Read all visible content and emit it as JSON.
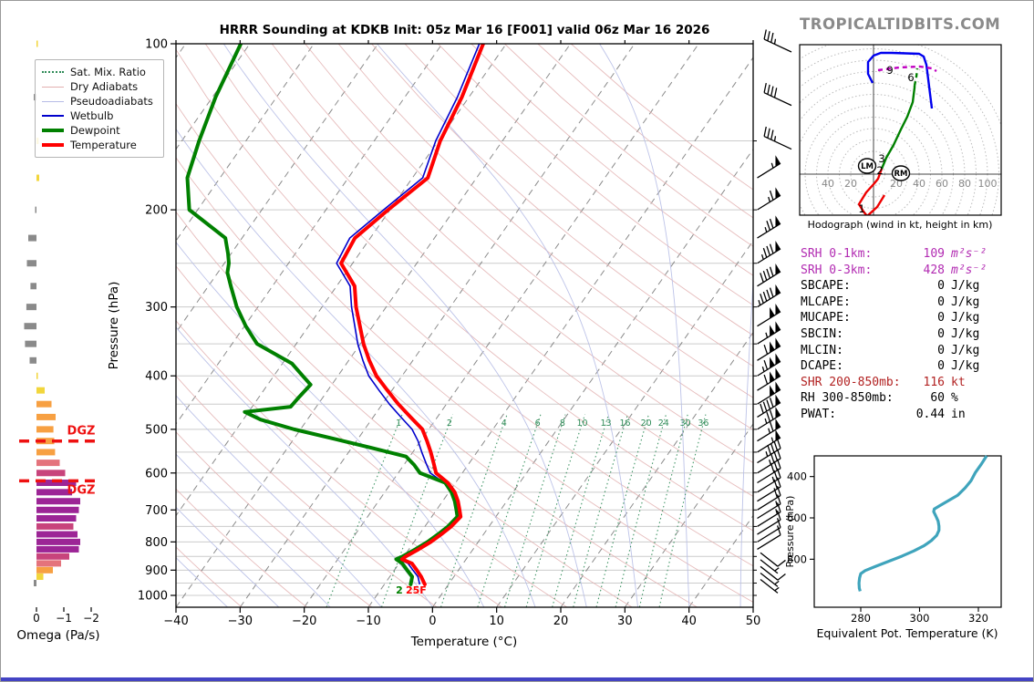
{
  "title": "HRRR Sounding at KDKB Init: 05z Mar 16 [F001] valid 06z Mar 16 2026",
  "watermark": "TROPICALTIDBITS.COM",
  "colors": {
    "temperature": "#ff0000",
    "dewpoint": "#008000",
    "wetbulb": "#0000cc",
    "dry_adiabat": "#e2b0b0",
    "pseudoadiabat": "#b6bce6",
    "mix_ratio": "#2e8b57",
    "isotherm": "#777777",
    "grid": "#cccccc",
    "dgz": "#ee1111",
    "hodo_ring": "#bbbbbb",
    "hodo_label": "#888888",
    "hodo_low": "#ee0000",
    "hodo_mid": "#008000",
    "hodo_high": "#0000ee",
    "hodo_top": "#c000c0",
    "thetae_curve": "#3fa4bc",
    "watermark": "#8a8a8a",
    "srh_text": "#b22bb2",
    "shear_text": "#b22222"
  },
  "skewt": {
    "xlabel": "Temperature (°C)",
    "ylabel": "Pressure (hPa)",
    "x_ticks": [
      -40,
      -30,
      -20,
      -10,
      0,
      10,
      20,
      30,
      40,
      50
    ],
    "p_labels": [
      100,
      200,
      300,
      400,
      500,
      600,
      700,
      800,
      900,
      1000
    ],
    "p_grid_min": 150,
    "p_grid_max": 1000,
    "p_grid_step": 50,
    "surface_dewpoint_label": "2",
    "surface_temp_label": "25F",
    "legend": [
      {
        "label": "Sat. Mix. Ratio",
        "key": "mixratio"
      },
      {
        "label": "Dry Adiabats",
        "key": "dry"
      },
      {
        "label": "Pseudoadiabats",
        "key": "pseudo"
      },
      {
        "label": "Wetbulb",
        "key": "wetbulb"
      },
      {
        "label": "Dewpoint",
        "key": "dewpoint"
      },
      {
        "label": "Temperature",
        "key": "temperature"
      }
    ]
  },
  "chart_data": {
    "type": "skewt-sounding",
    "temperature_C_by_hPa": [
      [
        100,
        -53.6
      ],
      [
        125,
        -51.1
      ],
      [
        150,
        -49.7
      ],
      [
        175,
        -47.6
      ],
      [
        200,
        -50.3
      ],
      [
        225,
        -52.4
      ],
      [
        250,
        -51.8
      ],
      [
        275,
        -47.2
      ],
      [
        300,
        -44.7
      ],
      [
        325,
        -42
      ],
      [
        350,
        -39.5
      ],
      [
        375,
        -36.8
      ],
      [
        400,
        -34
      ],
      [
        425,
        -30.7
      ],
      [
        450,
        -27.5
      ],
      [
        475,
        -24.2
      ],
      [
        500,
        -21
      ],
      [
        525,
        -19
      ],
      [
        550,
        -17.2
      ],
      [
        575,
        -15.6
      ],
      [
        600,
        -14.1
      ],
      [
        625,
        -11.2
      ],
      [
        650,
        -9.1
      ],
      [
        675,
        -7.6
      ],
      [
        700,
        -6.4
      ],
      [
        720,
        -5.5
      ],
      [
        750,
        -5.9
      ],
      [
        775,
        -6.6
      ],
      [
        800,
        -7.4
      ],
      [
        825,
        -8.5
      ],
      [
        850,
        -9.7
      ],
      [
        860,
        -10
      ],
      [
        875,
        -8
      ],
      [
        900,
        -6.5
      ],
      [
        925,
        -5.1
      ],
      [
        955,
        -3.7
      ]
    ],
    "dewpoint_C_by_hPa": [
      [
        100,
        -91.4
      ],
      [
        125,
        -89.5
      ],
      [
        150,
        -87.3
      ],
      [
        175,
        -85.1
      ],
      [
        200,
        -81.3
      ],
      [
        225,
        -72.6
      ],
      [
        240,
        -70.5
      ],
      [
        250,
        -69.3
      ],
      [
        260,
        -68.5
      ],
      [
        275,
        -66.5
      ],
      [
        300,
        -63.3
      ],
      [
        325,
        -59.8
      ],
      [
        350,
        -56.1
      ],
      [
        380,
        -48.5
      ],
      [
        400,
        -45.5
      ],
      [
        415,
        -43.3
      ],
      [
        440,
        -43.8
      ],
      [
        455,
        -44
      ],
      [
        465,
        -50.6
      ],
      [
        480,
        -47.3
      ],
      [
        500,
        -41
      ],
      [
        520,
        -33.8
      ],
      [
        540,
        -27
      ],
      [
        560,
        -20.6
      ],
      [
        580,
        -18.4
      ],
      [
        600,
        -16.6
      ],
      [
        625,
        -11.6
      ],
      [
        650,
        -9.6
      ],
      [
        675,
        -8.1
      ],
      [
        700,
        -6.9
      ],
      [
        720,
        -6
      ],
      [
        750,
        -6.4
      ],
      [
        775,
        -7.1
      ],
      [
        800,
        -7.9
      ],
      [
        825,
        -9
      ],
      [
        850,
        -10.2
      ],
      [
        860,
        -10.9
      ],
      [
        875,
        -9.5
      ],
      [
        900,
        -8
      ],
      [
        925,
        -6.5
      ],
      [
        955,
        -5.9
      ]
    ],
    "wetbulb_C_by_hPa": [
      [
        100,
        -54.2
      ],
      [
        125,
        -51.8
      ],
      [
        150,
        -50.4
      ],
      [
        175,
        -48.4
      ],
      [
        200,
        -51
      ],
      [
        225,
        -53.2
      ],
      [
        250,
        -52.5
      ],
      [
        275,
        -47.9
      ],
      [
        300,
        -45.4
      ],
      [
        325,
        -42.8
      ],
      [
        350,
        -40.4
      ],
      [
        375,
        -37.8
      ],
      [
        400,
        -35.2
      ],
      [
        425,
        -32
      ],
      [
        450,
        -28.9
      ],
      [
        475,
        -25.7
      ],
      [
        500,
        -22.6
      ],
      [
        525,
        -20.4
      ],
      [
        550,
        -18.6
      ],
      [
        575,
        -16.8
      ],
      [
        600,
        -15
      ],
      [
        625,
        -11.8
      ],
      [
        650,
        -9.5
      ],
      [
        675,
        -7.9
      ],
      [
        700,
        -6.6
      ],
      [
        720,
        -5.7
      ],
      [
        750,
        -6.1
      ],
      [
        775,
        -6.9
      ],
      [
        800,
        -7.7
      ],
      [
        825,
        -8.8
      ],
      [
        850,
        -10
      ],
      [
        860,
        -10.4
      ],
      [
        875,
        -8.6
      ],
      [
        900,
        -7.1
      ],
      [
        925,
        -5.6
      ],
      [
        955,
        -4.5
      ]
    ],
    "mixing_ratio_lines_gkg": [
      1,
      2,
      4,
      6,
      8,
      10,
      13,
      16,
      20,
      24,
      30,
      36
    ],
    "isotherms_C": {
      "min": -110,
      "max": 50,
      "step": 10
    },
    "dry_adiabats_thetaK": {
      "min": 230,
      "max": 450,
      "step": 10
    },
    "pseudoadiabats_thetawC": {
      "min": -40,
      "max": 48,
      "step": 8
    },
    "wind_barbs_kt_by_hPa": [
      [
        100,
        35,
        "top"
      ],
      [
        125,
        40,
        "top"
      ],
      [
        150,
        35,
        "top"
      ],
      [
        175,
        55,
        "ne"
      ],
      [
        200,
        65,
        "ne"
      ],
      [
        225,
        75,
        "ne"
      ],
      [
        250,
        85,
        "ne"
      ],
      [
        275,
        90,
        "ne"
      ],
      [
        300,
        95,
        "ne"
      ],
      [
        325,
        100,
        "ne"
      ],
      [
        350,
        105,
        "ne"
      ],
      [
        375,
        110,
        "ne"
      ],
      [
        400,
        115,
        "ne"
      ],
      [
        425,
        110,
        "ne"
      ],
      [
        450,
        100,
        "ne"
      ],
      [
        475,
        90,
        "ne"
      ],
      [
        500,
        75,
        "ne"
      ],
      [
        525,
        65,
        "ne"
      ],
      [
        550,
        55,
        "ne"
      ],
      [
        575,
        45,
        "ne"
      ],
      [
        600,
        35,
        "ne"
      ],
      [
        625,
        30,
        "ne"
      ],
      [
        650,
        25,
        "ne"
      ],
      [
        675,
        20,
        "ne"
      ],
      [
        700,
        20,
        "ne"
      ],
      [
        725,
        15,
        "ne"
      ],
      [
        750,
        15,
        "ne"
      ],
      [
        775,
        10,
        "ne"
      ],
      [
        800,
        10,
        "ne"
      ],
      [
        825,
        10,
        "ne"
      ],
      [
        850,
        10,
        "low"
      ],
      [
        875,
        5,
        "low"
      ],
      [
        900,
        10,
        "low"
      ],
      [
        925,
        5,
        "low"
      ],
      [
        950,
        5,
        "low"
      ]
    ],
    "omega": {
      "xlabel": "Omega (Pa/s)",
      "x_ticks": [
        0,
        -1,
        -2
      ],
      "dgz_label": "DGZ",
      "dgz_levels_hPa": [
        525,
        620
      ],
      "bars_Pas_by_hPa": [
        [
          100,
          -0.05,
          "yellow"
        ],
        [
          125,
          0.1,
          "gray"
        ],
        [
          150,
          -0.08,
          "yellow"
        ],
        [
          175,
          -0.1,
          "yellow"
        ],
        [
          200,
          0.05,
          "gray"
        ],
        [
          225,
          0.3,
          "gray"
        ],
        [
          250,
          0.35,
          "gray"
        ],
        [
          275,
          0.22,
          "gray"
        ],
        [
          300,
          0.37,
          "gray"
        ],
        [
          325,
          0.45,
          "gray"
        ],
        [
          350,
          0.42,
          "gray"
        ],
        [
          375,
          0.25,
          "gray"
        ],
        [
          400,
          -0.05,
          "yellow"
        ],
        [
          425,
          -0.3,
          "yellow"
        ],
        [
          450,
          -0.55,
          "orange"
        ],
        [
          475,
          -0.7,
          "orange"
        ],
        [
          500,
          -0.62,
          "orange"
        ],
        [
          525,
          -0.65,
          "orange"
        ],
        [
          550,
          -0.68,
          "orange"
        ],
        [
          575,
          -0.85,
          "salmon"
        ],
        [
          600,
          -1.05,
          "pink"
        ],
        [
          625,
          -1.45,
          "purple"
        ],
        [
          650,
          -1.3,
          "purple"
        ],
        [
          675,
          -1.6,
          "purple"
        ],
        [
          700,
          -1.55,
          "purple"
        ],
        [
          725,
          -1.45,
          "purple"
        ],
        [
          750,
          -1.35,
          "pink"
        ],
        [
          775,
          -1.5,
          "purple"
        ],
        [
          800,
          -1.6,
          "purple"
        ],
        [
          825,
          -1.55,
          "purple"
        ],
        [
          850,
          -1.2,
          "pink"
        ],
        [
          875,
          -0.9,
          "salmon"
        ],
        [
          900,
          -0.6,
          "orange"
        ],
        [
          925,
          -0.25,
          "yellow"
        ],
        [
          950,
          0.1,
          "gray"
        ]
      ],
      "palette": {
        "gray": "#8a8a8a",
        "yellow": "#f2d63c",
        "orange": "#f7a042",
        "salmon": "#e4737c",
        "pink": "#c8447c",
        "purple": "#9c2596"
      }
    },
    "hodograph": {
      "caption": "Hodograph (wind in kt, height in km)",
      "ring_step_kt": 10,
      "ring_labels_left_kt": [
        40,
        20
      ],
      "ring_labels_right_kt": [
        20,
        40,
        60,
        80,
        100
      ],
      "segments": [
        {
          "name": "0-1km",
          "color_key": "hodo_low",
          "dash": false,
          "uv_kt": [
            [
              9.6,
              -18.4
            ],
            [
              3.2,
              -28.8
            ],
            [
              -5.6,
              -36.8
            ],
            [
              -8.8,
              -32.8
            ],
            [
              -12.8,
              -26.4
            ],
            [
              -6.4,
              -16
            ],
            [
              0.8,
              -8
            ],
            [
              4,
              -4
            ],
            [
              7.2,
              4.8
            ]
          ]
        },
        {
          "name": "1-6km",
          "color_key": "hodo_mid",
          "dash": false,
          "uv_kt": [
            [
              7.2,
              4.8
            ],
            [
              11.2,
              14.4
            ],
            [
              17.6,
              25.6
            ],
            [
              24,
              39.2
            ],
            [
              29.6,
              50.4
            ],
            [
              34.4,
              63.2
            ],
            [
              36,
              76
            ],
            [
              36,
              77.6
            ]
          ]
        },
        {
          "name": "6-8km",
          "color_key": "hodo_mid",
          "dash": true,
          "uv_kt": [
            [
              36,
              77.6
            ],
            [
              37.6,
              85.6
            ],
            [
              38.4,
              92.8
            ]
          ]
        },
        {
          "name": "upper",
          "color_key": "hodo_high",
          "dash": false,
          "uv_kt": [
            [
              -0.8,
              80
            ],
            [
              -4.8,
              88
            ],
            [
              -4.8,
              98.4
            ],
            [
              0,
              104
            ],
            [
              6.4,
              106.4
            ],
            [
              16,
              106.4
            ],
            [
              40,
              105.6
            ],
            [
              44,
              103.2
            ],
            [
              46.4,
              96
            ],
            [
              51.2,
              57.6
            ]
          ]
        },
        {
          "name": "9km+",
          "color_key": "hodo_top",
          "dash": true,
          "uv_kt": [
            [
              4,
              91.2
            ],
            [
              22.4,
              93.6
            ],
            [
              40.8,
              94.4
            ],
            [
              51.2,
              92.8
            ],
            [
              55.2,
              90.4
            ]
          ]
        }
      ],
      "height_labels": [
        {
          "t": "1",
          "u": -10.4,
          "v": -30.4
        },
        {
          "t": "2",
          "u": 5.6,
          "v": 3.2
        },
        {
          "t": "3",
          "u": 7.2,
          "v": 13.6
        },
        {
          "t": "6",
          "u": 32.8,
          "v": 84.8
        },
        {
          "t": "9",
          "u": 14.4,
          "v": 91.2
        }
      ],
      "markers": [
        {
          "t": "LM",
          "u": -5.6,
          "v": 7.2
        },
        {
          "t": "RM",
          "u": 24,
          "v": 0.8
        }
      ]
    },
    "stats_rows": [
      {
        "label": "SRH 0-1km:",
        "value": "109",
        "unit": "m²s⁻²",
        "style": "srh",
        "math": true
      },
      {
        "label": "SRH 0-3km:",
        "value": "428",
        "unit": "m²s⁻²",
        "style": "srh",
        "math": true
      },
      {
        "label": "SBCAPE:",
        "value": "0",
        "unit": "J/kg",
        "style": "",
        "math": false
      },
      {
        "label": "MLCAPE:",
        "value": "0",
        "unit": "J/kg",
        "style": "",
        "math": false
      },
      {
        "label": "MUCAPE:",
        "value": "0",
        "unit": "J/kg",
        "style": "",
        "math": false
      },
      {
        "label": "SBCIN:",
        "value": "0",
        "unit": "J/kg",
        "style": "",
        "math": false
      },
      {
        "label": "MLCIN:",
        "value": "0",
        "unit": "J/kg",
        "style": "",
        "math": false
      },
      {
        "label": "DCAPE:",
        "value": "0",
        "unit": "J/kg",
        "style": "",
        "math": false
      },
      {
        "label": "SHR 200-850mb:",
        "value": "116",
        "unit": "kt",
        "style": "shr",
        "math": false
      },
      {
        "label": "RH 300-850mb:",
        "value": "60",
        "unit": "%",
        "style": "",
        "math": false
      },
      {
        "label": "PWAT:",
        "value": "0.44",
        "unit": "in",
        "style": "",
        "math": false
      }
    ],
    "thetae": {
      "xlabel": "Equivalent Pot. Temperature (K)",
      "ylabel": "Pressure (hPa)",
      "x_ticks": [
        280,
        300,
        320
      ],
      "p_ticks": [
        400,
        600,
        800
      ],
      "curve_K_by_hPa": [
        [
          300,
          322.8
        ],
        [
          340,
          321
        ],
        [
          380,
          319
        ],
        [
          420,
          317.5
        ],
        [
          455,
          315.5
        ],
        [
          490,
          313
        ],
        [
          515,
          310
        ],
        [
          540,
          307
        ],
        [
          557,
          305
        ],
        [
          570,
          304.8
        ],
        [
          590,
          305.5
        ],
        [
          615,
          306.3
        ],
        [
          640,
          306.6
        ],
        [
          660,
          306.6
        ],
        [
          685,
          305.8
        ],
        [
          710,
          304
        ],
        [
          735,
          301.5
        ],
        [
          760,
          298
        ],
        [
          785,
          294
        ],
        [
          810,
          289.5
        ],
        [
          835,
          285
        ],
        [
          855,
          281.5
        ],
        [
          870,
          280
        ],
        [
          890,
          279.6
        ],
        [
          915,
          279.4
        ],
        [
          940,
          279.5
        ],
        [
          955,
          279.8
        ]
      ]
    }
  }
}
